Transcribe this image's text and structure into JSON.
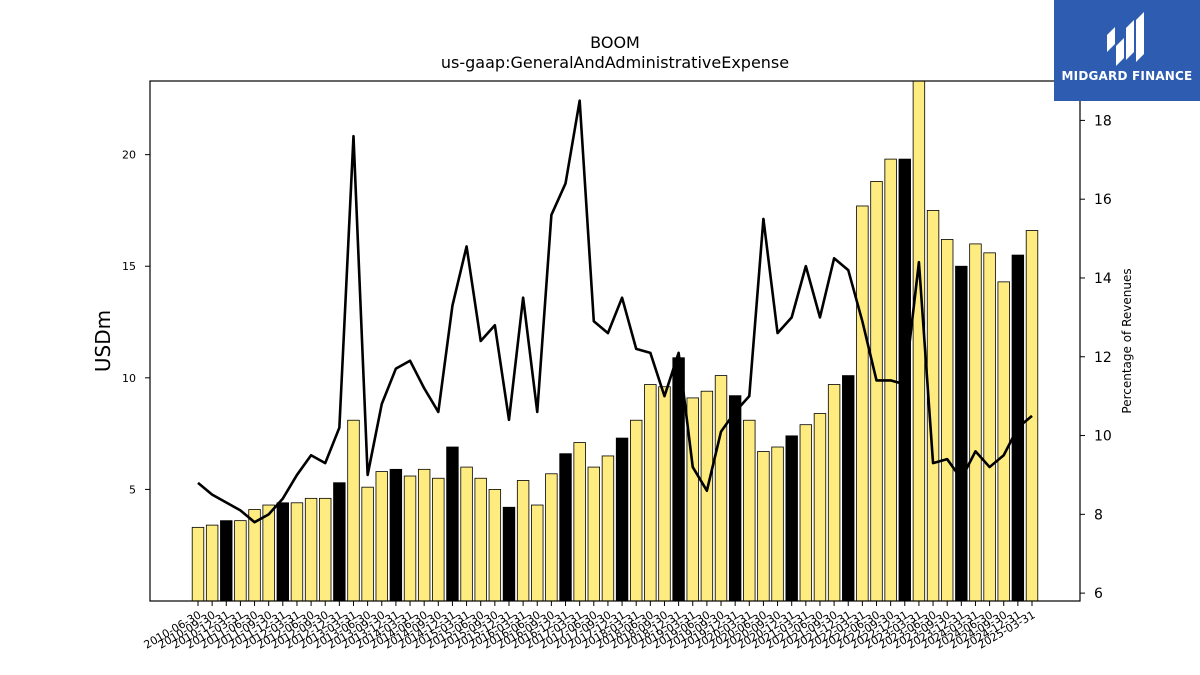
{
  "chart_data": {
    "type": "bar+line",
    "title": "BOOM",
    "subtitle": "us-gaap:GeneralAndAdministrativeExpense",
    "ylabel": "USDm",
    "y2label": "Percentage of Revenues",
    "ylim": [
      0,
      23.3
    ],
    "y2lim": [
      5.8,
      19.0
    ],
    "yticks": [
      5,
      10,
      15,
      20
    ],
    "y2ticks": [
      6,
      8,
      10,
      12,
      14,
      16,
      18
    ],
    "bar_color": "#ffec80",
    "bar_highlight_color": "#000000",
    "line_color": "#000000",
    "categories": [
      "2010-06-30",
      "2010-09-30",
      "2010-12-31",
      "2011-03-31",
      "2011-06-30",
      "2011-09-30",
      "2011-12-31",
      "2012-03-31",
      "2012-06-30",
      "2012-09-30",
      "2012-12-31",
      "2013-03-31",
      "2013-06-30",
      "2013-09-30",
      "2013-12-31",
      "2014-03-31",
      "2014-06-30",
      "2014-09-30",
      "2014-12-31",
      "2015-03-31",
      "2015-06-30",
      "2015-09-30",
      "2015-12-31",
      "2016-03-31",
      "2016-06-30",
      "2016-09-30",
      "2016-12-31",
      "2017-03-31",
      "2017-06-30",
      "2017-09-30",
      "2017-12-31",
      "2018-03-31",
      "2018-06-30",
      "2018-09-30",
      "2018-12-31",
      "2019-03-31",
      "2019-06-30",
      "2019-09-30",
      "2019-12-31",
      "2020-03-31",
      "2020-06-30",
      "2020-09-30",
      "2020-12-31",
      "2021-03-31",
      "2021-06-30",
      "2021-09-30",
      "2021-12-31",
      "2022-03-31",
      "2022-06-30",
      "2022-09-30",
      "2022-12-31",
      "2023-03-31",
      "2023-06-30",
      "2023-09-30",
      "2023-12-31",
      "2024-03-31",
      "2024-06-30",
      "2024-09-30",
      "2024-12-31",
      "2025-03-31"
    ],
    "series": [
      {
        "type": "bar",
        "values": [
          3.3,
          3.4,
          3.6,
          3.6,
          4.1,
          4.3,
          4.4,
          4.4,
          4.6,
          4.6,
          5.3,
          8.1,
          5.1,
          5.8,
          5.9,
          5.6,
          5.9,
          5.5,
          6.9,
          6.0,
          5.5,
          5.0,
          4.2,
          5.4,
          4.3,
          5.7,
          6.6,
          7.1,
          6.0,
          6.5,
          7.3,
          8.1,
          9.7,
          9.6,
          10.9,
          9.1,
          9.4,
          10.1,
          9.2,
          8.1,
          6.7,
          6.9,
          7.4,
          7.9,
          8.4,
          9.7,
          10.1,
          17.7,
          18.8,
          19.8,
          19.8,
          23.3,
          17.5,
          16.2,
          15.0,
          16.0,
          15.6,
          14.3,
          15.5,
          16.6
        ],
        "highlight": [
          false,
          false,
          true,
          false,
          false,
          false,
          true,
          false,
          false,
          false,
          true,
          false,
          false,
          false,
          true,
          false,
          false,
          false,
          true,
          false,
          false,
          false,
          true,
          false,
          false,
          false,
          true,
          false,
          false,
          false,
          true,
          false,
          false,
          false,
          true,
          false,
          false,
          false,
          true,
          false,
          false,
          false,
          true,
          false,
          false,
          false,
          true,
          false,
          false,
          false,
          true,
          false,
          false,
          false,
          true,
          false,
          false,
          false,
          true,
          false
        ]
      },
      {
        "type": "line",
        "axis": "right",
        "values": [
          8.8,
          8.5,
          8.3,
          8.1,
          7.8,
          8.0,
          8.4,
          9.0,
          9.5,
          9.3,
          10.2,
          17.6,
          9.0,
          10.8,
          11.7,
          11.9,
          11.2,
          10.6,
          13.3,
          14.8,
          12.4,
          12.8,
          10.4,
          13.5,
          10.6,
          15.6,
          16.4,
          18.5,
          12.9,
          12.6,
          13.5,
          12.2,
          12.1,
          11.0,
          12.1,
          9.2,
          8.6,
          10.1,
          10.6,
          11.0,
          15.5,
          12.6,
          13.0,
          14.3,
          13.0,
          14.5,
          14.2,
          12.9,
          11.4,
          11.4,
          11.3,
          14.4,
          9.3,
          9.4,
          8.9,
          9.6,
          9.2,
          9.5,
          10.2,
          10.5
        ]
      }
    ]
  },
  "logo": {
    "text": "MIDGARD FINANCE"
  }
}
